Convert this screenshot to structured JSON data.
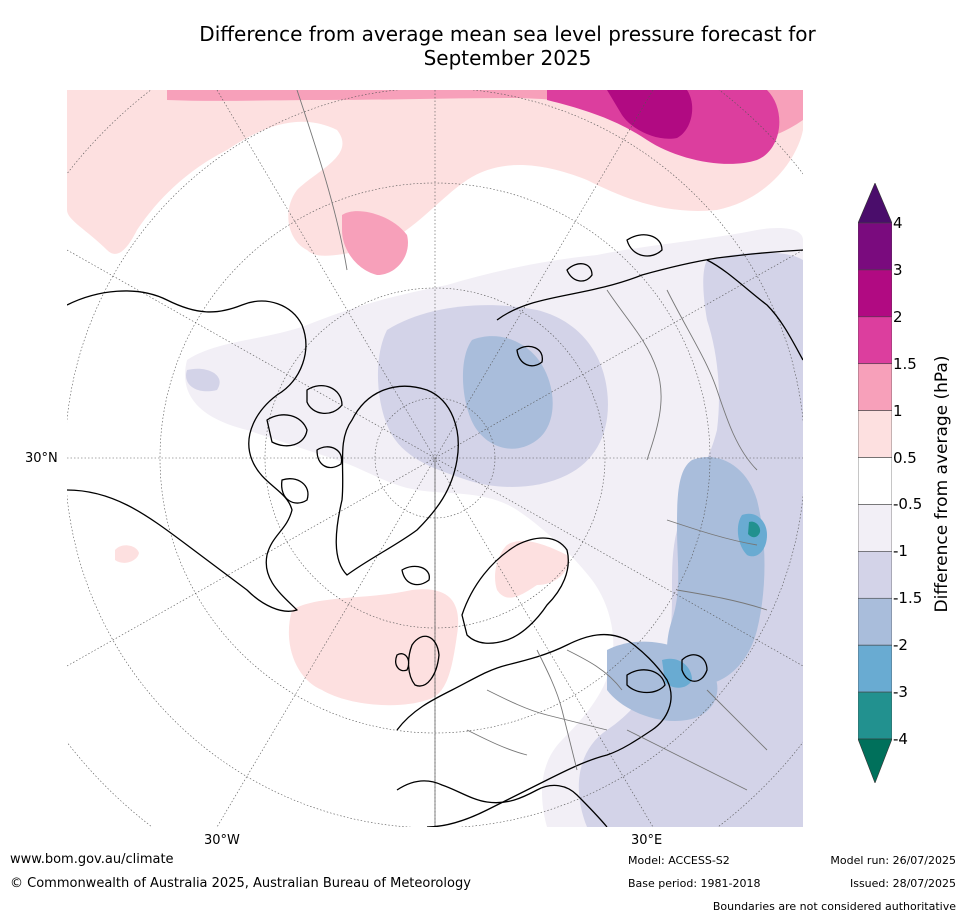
{
  "title_line1": "Difference from average mean sea level pressure forecast for",
  "title_line2": "September 2025",
  "map": {
    "lat_label": "30°N",
    "lon_labels": [
      "30°W",
      "30°E"
    ]
  },
  "colorbar": {
    "title": "Difference from average (hPa)",
    "ticks": [
      "4",
      "3",
      "2",
      "1.5",
      "1",
      "0.5",
      "-0.5",
      "-1",
      "-1.5",
      "-2",
      "-3",
      "-4"
    ],
    "colors": [
      "#4a0d6b",
      "#7a0b7e",
      "#b10a82",
      "#dc3e9e",
      "#f7a0ba",
      "#fde0e0",
      "#ffffff",
      "#f2eff6",
      "#d3d3e8",
      "#a9bddb",
      "#69abd2",
      "#22918f",
      "#00705b"
    ]
  },
  "footer": {
    "website": "www.bom.gov.au/climate",
    "copyright": "© Commonwealth of Australia 2025, Australian Bureau of Meteorology",
    "model": "Model: ACCESS-S2",
    "base_period": "Base period: 1981-2018",
    "model_run": "Model run: 26/07/2025",
    "issued": "Issued: 28/07/2025",
    "boundaries_note": "Boundaries are not considered authoritative"
  }
}
